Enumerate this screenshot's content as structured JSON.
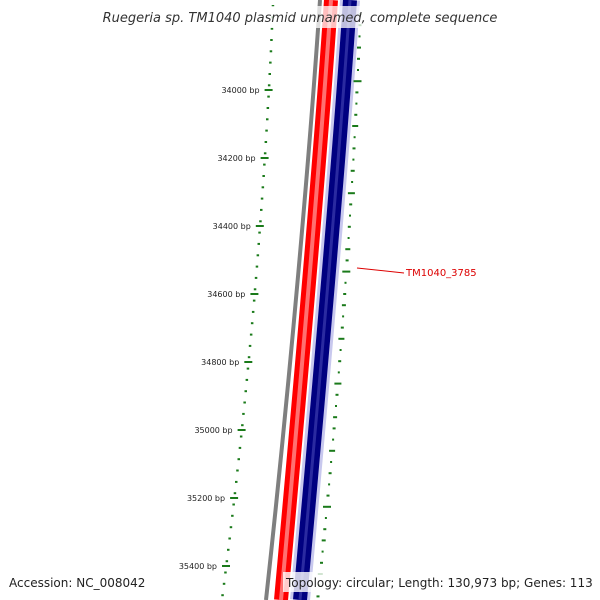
{
  "title": "Ruegeria sp. TM1040 plasmid unnamed, complete sequence",
  "ruler": {
    "labels": [
      "34000 bp",
      "34200 bp",
      "34400 bp",
      "34600 bp",
      "34800 bp",
      "35000 bp",
      "35200 bp",
      "35400 bp"
    ]
  },
  "gene_label": "TM1040_3785",
  "footer": {
    "accession": "Accession: NC_008042",
    "summary": "Topology: circular; Length: 130,973 bp; Genes: 113"
  },
  "colors": {
    "ruler": "#1a7a1a",
    "backbone": "#7f7f7f",
    "forward_track": "#ff0000",
    "reverse_track": "#000080",
    "label": "#dd0000"
  }
}
